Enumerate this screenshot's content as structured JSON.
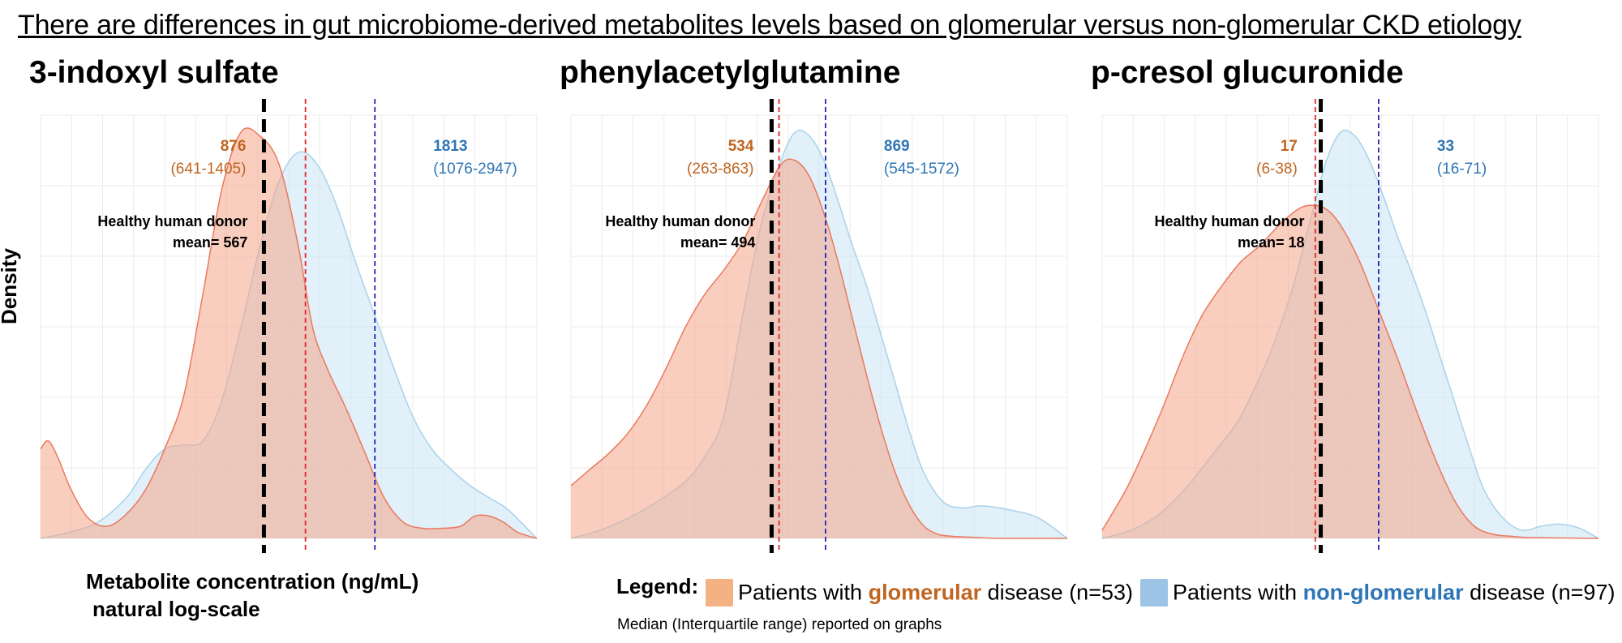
{
  "title": "There are differences in gut microbiome-derived metabolites levels based on glomerular versus non-glomerular CKD etiology",
  "colors": {
    "glomerular_fill": "#f5a58a",
    "glomerular_line": "#e9795f",
    "glomerular_text": "#c0651f",
    "glomerular_median": "#e0262b",
    "nonglomerular_fill": "#c8e3f4",
    "nonglomerular_line": "#a9d2ea",
    "nonglomerular_text": "#2e75b6",
    "nonglomerular_median": "#2222bb",
    "healthy_line": "#000000",
    "grid": "#ebebeb",
    "swatch_glomerular": "#f4b183",
    "swatch_nonglomerular": "#9dc3e6"
  },
  "axes": {
    "ylabel": "Density",
    "xlabel_line1": "Metabolite concentration (ng/mL)",
    "xlabel_line2": "natural log-scale"
  },
  "legend": {
    "title": "Legend:",
    "glomerular_prefix": "Patients with ",
    "glomerular_emph": "glomerular",
    "glomerular_suffix": " disease (n=53)",
    "nonglomerular_prefix": "Patients with ",
    "nonglomerular_emph": "non-glomerular",
    "nonglomerular_suffix": " disease (n=97)"
  },
  "note": "Median (Interquartile range) reported on graphs",
  "chart_data": [
    {
      "type": "area",
      "title": "3-indoxyl sulfate",
      "x_scale": "natural log",
      "xlabel": "Metabolite concentration (ng/mL)",
      "ylabel": "Density",
      "xlim_ln": [
        4.0,
        9.2
      ],
      "ymax": 1.0,
      "healthy": {
        "label_line1": "Healthy human donor",
        "label_line2": "mean= 567",
        "value": 567
      },
      "series": [
        {
          "name": "glomerular",
          "median": 876,
          "iqr": "(641-1405)",
          "ln_x": [
            4.0,
            4.08,
            4.18,
            4.32,
            4.5,
            4.7,
            4.9,
            5.1,
            5.3,
            5.5,
            5.7,
            5.9,
            6.1,
            6.3,
            6.5,
            6.7,
            6.85,
            7.0,
            7.2,
            7.4,
            7.6,
            7.8,
            8.0,
            8.2,
            8.4,
            8.55,
            8.7,
            8.85,
            9.0,
            9.2
          ],
          "density": [
            0.22,
            0.24,
            0.2,
            0.12,
            0.05,
            0.03,
            0.06,
            0.12,
            0.22,
            0.35,
            0.6,
            0.86,
            1.0,
            0.99,
            0.92,
            0.72,
            0.52,
            0.42,
            0.32,
            0.21,
            0.1,
            0.04,
            0.025,
            0.025,
            0.03,
            0.055,
            0.055,
            0.04,
            0.015,
            0.0
          ]
        },
        {
          "name": "non-glomerular",
          "median": 1813,
          "iqr": "(1076-2947)",
          "ln_x": [
            4.0,
            4.3,
            4.6,
            4.9,
            5.1,
            5.3,
            5.5,
            5.7,
            5.9,
            6.1,
            6.3,
            6.5,
            6.7,
            6.9,
            7.1,
            7.3,
            7.5,
            7.7,
            7.9,
            8.1,
            8.3,
            8.5,
            8.7,
            8.9,
            9.2
          ],
          "density": [
            0.0,
            0.015,
            0.04,
            0.1,
            0.17,
            0.22,
            0.23,
            0.24,
            0.34,
            0.52,
            0.72,
            0.88,
            0.95,
            0.92,
            0.82,
            0.68,
            0.55,
            0.42,
            0.3,
            0.22,
            0.17,
            0.13,
            0.1,
            0.07,
            0.0
          ]
        }
      ]
    },
    {
      "type": "area",
      "title": "phenylacetylglutamine",
      "x_scale": "natural log",
      "xlabel": "Metabolite concentration (ng/mL)",
      "ylabel": "Density",
      "xlim_ln": [
        4.1,
        9.3
      ],
      "ymax": 1.0,
      "healthy": {
        "label_line1": "Healthy human donor",
        "label_line2": "mean= 494",
        "value": 494
      },
      "series": [
        {
          "name": "glomerular",
          "median": 534,
          "iqr": "(263-863)",
          "ln_x": [
            4.1,
            4.3,
            4.5,
            4.7,
            4.9,
            5.1,
            5.3,
            5.5,
            5.7,
            5.9,
            6.1,
            6.3,
            6.45,
            6.6,
            6.75,
            6.9,
            7.05,
            7.2,
            7.35,
            7.5,
            7.65,
            7.8,
            7.95,
            8.1,
            8.3,
            8.6,
            9.3
          ],
          "density": [
            0.13,
            0.17,
            0.21,
            0.26,
            0.33,
            0.42,
            0.52,
            0.6,
            0.66,
            0.73,
            0.83,
            0.92,
            0.93,
            0.89,
            0.8,
            0.68,
            0.54,
            0.4,
            0.27,
            0.16,
            0.08,
            0.03,
            0.01,
            0.005,
            0.003,
            0.0,
            0.0
          ]
        },
        {
          "name": "non-glomerular",
          "median": 869,
          "iqr": "(545-1572)",
          "ln_x": [
            4.1,
            4.4,
            4.7,
            5.0,
            5.3,
            5.5,
            5.7,
            5.9,
            6.1,
            6.3,
            6.45,
            6.6,
            6.75,
            6.9,
            7.05,
            7.2,
            7.35,
            7.5,
            7.65,
            7.8,
            8.0,
            8.2,
            8.4,
            8.7,
            9.0,
            9.3
          ],
          "density": [
            0.0,
            0.02,
            0.05,
            0.09,
            0.14,
            0.2,
            0.3,
            0.55,
            0.78,
            0.93,
            1.0,
            0.99,
            0.93,
            0.83,
            0.72,
            0.62,
            0.5,
            0.38,
            0.26,
            0.16,
            0.09,
            0.075,
            0.08,
            0.07,
            0.05,
            0.0
          ]
        }
      ]
    },
    {
      "type": "area",
      "title": "p-cresol glucuronide",
      "x_scale": "natural log",
      "xlabel": "Metabolite concentration (ng/mL)",
      "ylabel": "Density",
      "xlim_ln": [
        0.6,
        5.8
      ],
      "ymax": 1.0,
      "healthy": {
        "label_line1": "Healthy human donor",
        "label_line2": "mean= 18",
        "value": 18
      },
      "series": [
        {
          "name": "glomerular",
          "median": 17,
          "iqr": "(6-38)",
          "ln_x": [
            0.6,
            0.85,
            1.05,
            1.25,
            1.45,
            1.65,
            1.85,
            2.05,
            2.25,
            2.45,
            2.65,
            2.8,
            2.95,
            3.1,
            3.3,
            3.5,
            3.7,
            3.9,
            4.1,
            4.3,
            4.5,
            4.7,
            4.9,
            5.1,
            5.8
          ],
          "density": [
            0.02,
            0.12,
            0.22,
            0.33,
            0.45,
            0.55,
            0.62,
            0.68,
            0.72,
            0.77,
            0.81,
            0.82,
            0.81,
            0.77,
            0.68,
            0.56,
            0.44,
            0.31,
            0.19,
            0.09,
            0.03,
            0.01,
            0.005,
            0.002,
            0.0
          ]
        },
        {
          "name": "non-glomerular",
          "median": 33,
          "iqr": "(16-71)",
          "ln_x": [
            0.6,
            0.9,
            1.2,
            1.5,
            1.8,
            2.0,
            2.2,
            2.4,
            2.6,
            2.8,
            2.95,
            3.1,
            3.25,
            3.4,
            3.55,
            3.7,
            3.85,
            4.0,
            4.15,
            4.3,
            4.45,
            4.6,
            4.8,
            5.0,
            5.2,
            5.4,
            5.6,
            5.8
          ],
          "density": [
            0.0,
            0.02,
            0.06,
            0.13,
            0.22,
            0.28,
            0.37,
            0.48,
            0.62,
            0.8,
            0.93,
            1.0,
            0.99,
            0.93,
            0.84,
            0.74,
            0.65,
            0.55,
            0.44,
            0.33,
            0.22,
            0.12,
            0.05,
            0.02,
            0.03,
            0.035,
            0.025,
            0.0
          ]
        }
      ]
    }
  ]
}
